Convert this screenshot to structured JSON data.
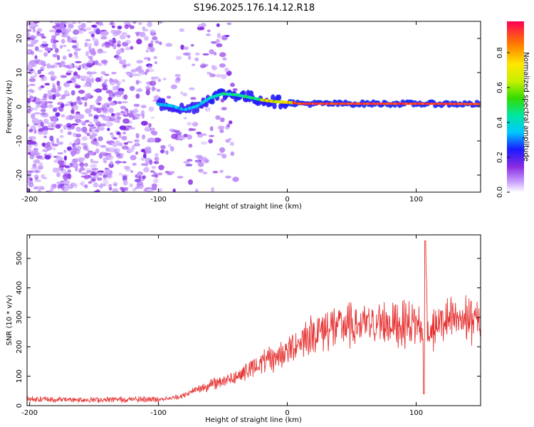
{
  "figure": {
    "title": "S196.2025.176.14.12.R18"
  },
  "chart_data": [
    {
      "type": "heatmap",
      "xlabel": "Height of straight line (km)",
      "ylabel": "Frequency (Hz)",
      "xlim": [
        -202,
        150
      ],
      "ylim": [
        -25,
        25
      ],
      "xticks": [
        -200,
        -100,
        0,
        100
      ],
      "yticks": [
        -20,
        -10,
        0,
        10,
        20
      ],
      "colorbar": {
        "label": "Normalized spectral amplitude",
        "range": [
          0,
          0.98
        ],
        "ticks": [
          0.0,
          0.2,
          0.4,
          0.6,
          0.8
        ],
        "tick_labels": [
          "0.0",
          "0.2",
          "0.4",
          "0.6",
          "0.8"
        ]
      },
      "tone_track": [
        {
          "x": -100,
          "freq": 0.7
        },
        {
          "x": -90,
          "freq": 0.3
        },
        {
          "x": -80,
          "freq": -0.9
        },
        {
          "x": -70,
          "freq": 0.2
        },
        {
          "x": -60,
          "freq": 2.6
        },
        {
          "x": -50,
          "freq": 3.8
        },
        {
          "x": -40,
          "freq": 3.5
        },
        {
          "x": -30,
          "freq": 2.8
        },
        {
          "x": -20,
          "freq": 2.0
        },
        {
          "x": -10,
          "freq": 1.5
        },
        {
          "x": 0,
          "freq": 1.3
        },
        {
          "x": 10,
          "freq": 0.9
        },
        {
          "x": 50,
          "freq": 0.9
        },
        {
          "x": 100,
          "freq": 0.9
        },
        {
          "x": 150,
          "freq": 0.8
        }
      ],
      "noise_floor_region": [
        -202,
        -100
      ]
    },
    {
      "type": "line",
      "xlabel": "Height of straight line (km)",
      "ylabel": "SNR (10 * v/v)",
      "xlim": [
        -202,
        150
      ],
      "ylim": [
        0,
        580
      ],
      "xticks": [
        -200,
        -100,
        0,
        100
      ],
      "yticks": [
        0,
        100,
        200,
        300,
        400,
        500
      ],
      "series": [
        {
          "color": "#e63232",
          "x": [
            -202,
            -150,
            -100,
            -90,
            -80,
            -70,
            -60,
            -50,
            -40,
            -30,
            -20,
            -10,
            0,
            10,
            20,
            30,
            40,
            50,
            60,
            70,
            80,
            90,
            100,
            105,
            107,
            110,
            120,
            130,
            140,
            150
          ],
          "y": [
            22,
            20,
            22,
            25,
            35,
            55,
            70,
            85,
            100,
            120,
            145,
            160,
            185,
            220,
            245,
            260,
            270,
            272,
            275,
            278,
            280,
            278,
            280,
            270,
            560,
            250,
            285,
            290,
            295,
            285
          ]
        }
      ]
    }
  ]
}
